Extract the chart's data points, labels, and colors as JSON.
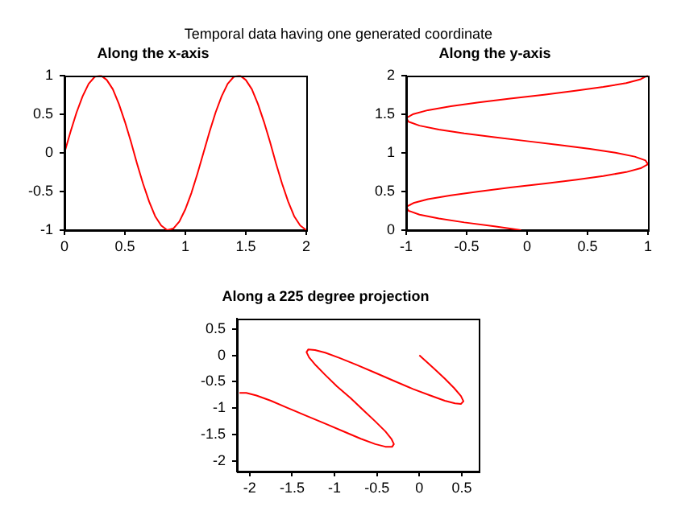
{
  "chart_data": [
    {
      "type": "line",
      "title": "Temporal data having one generated coordinate",
      "subtitle": "Along the x-axis",
      "xlim": [
        0,
        2
      ],
      "ylim": [
        -1,
        1
      ],
      "xticks": [
        0,
        0.5,
        1,
        1.5,
        2
      ],
      "yticks": [
        -1,
        -0.5,
        0,
        0.5,
        1
      ],
      "grid": false,
      "legend": false,
      "marker": "none",
      "line_style": "solid",
      "series": [
        {
          "color": "#ff0000",
          "x": [
            0,
            0.05,
            0.1,
            0.15,
            0.2,
            0.25,
            0.3,
            0.35,
            0.4,
            0.45,
            0.5,
            0.55,
            0.6,
            0.65,
            0.7,
            0.75,
            0.8,
            0.85,
            0.9,
            0.95,
            1,
            1.05,
            1.1,
            1.15,
            1.2,
            1.25,
            1.3,
            1.35,
            1.4,
            1.45,
            1.5,
            1.55,
            1.6,
            1.65,
            1.7,
            1.75,
            1.8,
            1.85,
            1.9,
            1.95,
            2
          ],
          "values": [
            0,
            0.27,
            0.52,
            0.73,
            0.89,
            0.98,
            1,
            0.94,
            0.82,
            0.63,
            0.4,
            0.14,
            -0.14,
            -0.4,
            -0.63,
            -0.82,
            -0.94,
            -1,
            -0.98,
            -0.89,
            -0.73,
            -0.52,
            -0.27,
            0,
            0.27,
            0.52,
            0.73,
            0.89,
            0.98,
            1,
            0.94,
            0.82,
            0.63,
            0.4,
            0.14,
            -0.14,
            -0.4,
            -0.63,
            -0.82,
            -0.94,
            -1
          ]
        }
      ]
    },
    {
      "type": "line",
      "title": "Along the y-axis",
      "xlim": [
        -1,
        1
      ],
      "ylim": [
        0,
        2
      ],
      "xticks": [
        -1,
        -0.5,
        0,
        0.5,
        1
      ],
      "yticks": [
        0,
        0.5,
        1,
        1.5,
        2
      ],
      "grid": false,
      "legend": false,
      "marker": "none",
      "line_style": "solid",
      "series": [
        {
          "color": "#ff0000",
          "x": [
            -0.05,
            -0.27,
            -0.52,
            -0.73,
            -0.89,
            -0.98,
            -1,
            -0.94,
            -0.82,
            -0.63,
            -0.4,
            -0.14,
            0.14,
            0.4,
            0.63,
            0.82,
            0.94,
            1,
            0.98,
            0.89,
            0.73,
            0.52,
            0.27,
            0,
            -0.27,
            -0.52,
            -0.73,
            -0.89,
            -0.98,
            -1,
            -0.94,
            -0.82,
            -0.63,
            -0.4,
            -0.14,
            0.14,
            0.4,
            0.63,
            0.82,
            0.94,
            1
          ],
          "values": [
            0,
            0.05,
            0.1,
            0.15,
            0.2,
            0.25,
            0.3,
            0.35,
            0.4,
            0.45,
            0.5,
            0.55,
            0.6,
            0.65,
            0.7,
            0.75,
            0.8,
            0.85,
            0.9,
            0.95,
            1,
            1.05,
            1.1,
            1.15,
            1.2,
            1.25,
            1.3,
            1.35,
            1.4,
            1.45,
            1.5,
            1.55,
            1.6,
            1.65,
            1.7,
            1.75,
            1.8,
            1.85,
            1.9,
            1.95,
            2
          ]
        }
      ]
    },
    {
      "type": "line",
      "title": "Along a 225 degree projection",
      "xlim": [
        -2.15,
        0.7
      ],
      "ylim": [
        -2.2,
        0.7
      ],
      "xticks": [
        -2,
        -1.5,
        -1,
        -0.5,
        0,
        0.5
      ],
      "yticks": [
        -2,
        -1.5,
        -1,
        -0.5,
        0,
        0.5
      ],
      "grid": false,
      "legend": false,
      "marker": "none",
      "line_style": "solid",
      "series": [
        {
          "color": "#ff0000",
          "x": [
            0,
            0.16,
            0.3,
            0.41,
            0.49,
            0.52,
            0.49,
            0.42,
            0.3,
            0.13,
            -0.07,
            -0.29,
            -0.52,
            -0.74,
            -0.94,
            -1.11,
            -1.23,
            -1.31,
            -1.33,
            -1.3,
            -1.22,
            -1.11,
            -0.97,
            -0.81,
            -0.66,
            -0.52,
            -0.4,
            -0.33,
            -0.3,
            -0.32,
            -0.4,
            -0.52,
            -0.69,
            -0.88,
            -1.1,
            -1.34,
            -1.56,
            -1.75,
            -1.92,
            -2.04,
            -2.12
          ],
          "values": [
            0,
            -0.23,
            -0.44,
            -0.62,
            -0.77,
            -0.87,
            -0.92,
            -0.91,
            -0.86,
            -0.76,
            -0.64,
            -0.49,
            -0.33,
            -0.18,
            -0.05,
            0.05,
            0.1,
            0.11,
            0.06,
            -0.04,
            -0.19,
            -0.37,
            -0.59,
            -0.81,
            -1.04,
            -1.25,
            -1.44,
            -1.58,
            -1.68,
            -1.73,
            -1.73,
            -1.68,
            -1.58,
            -1.45,
            -1.3,
            -1.14,
            -0.99,
            -0.86,
            -0.76,
            -0.71,
            -0.71
          ]
        }
      ]
    }
  ]
}
